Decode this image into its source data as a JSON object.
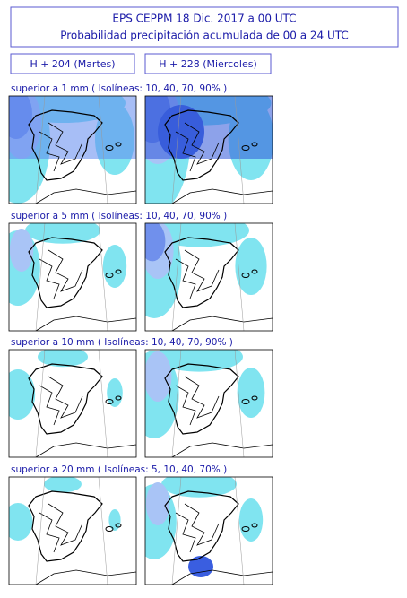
{
  "header": {
    "title_line1": "EPS   CEPPM    18 Dic. 2017   a   00 UTC",
    "title_line2": "Probabilidad precipitación acumulada de 00 a 24 UTC"
  },
  "columns": [
    "H + 204   (Martes)",
    "H + 228   (Miercoles)"
  ],
  "rows": [
    {
      "label": "superior a 1 mm   ( Isolíneas: 10, 40, 70, 90% )"
    },
    {
      "label": "superior a 5 mm   ( Isolíneas: 10, 40, 70, 90% )"
    },
    {
      "label": "superior a 10 mm   ( Isolíneas: 10, 40, 70, 90% )"
    },
    {
      "label": "superior a 20 mm   ( Isolíneas: 5, 10, 40, 70% )"
    }
  ]
}
